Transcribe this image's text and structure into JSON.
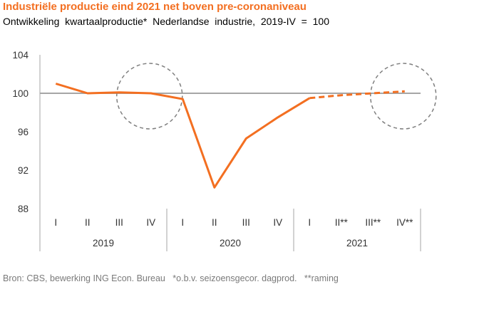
{
  "title": "Industriële productie eind 2021 net boven pre-coronaniveau",
  "subtitle": "Ontwikkeling  kwartaalproductie*  Nederlandse  industrie,  2019-IV  =  100",
  "source": "Bron: CBS, bewerking ING Econ. Bureau   *o.b.v. seizoensgecor. dagprod.   **raming",
  "colors": {
    "line": "#f36f21",
    "axis": "#a6a6a6",
    "circle": "#7f7f7f",
    "title": "#f36f21"
  },
  "chart_data": {
    "type": "line",
    "categories": [
      "I",
      "II",
      "III",
      "IV",
      "I",
      "II",
      "III",
      "IV",
      "I",
      "II**",
      "III**",
      "IV**"
    ],
    "groups": [
      {
        "label": "2019",
        "count": 4
      },
      {
        "label": "2020",
        "count": 4
      },
      {
        "label": "2021",
        "count": 4
      }
    ],
    "series": [
      {
        "style": "solid",
        "values": [
          101.0,
          100.0,
          100.1,
          100.0,
          99.4,
          90.2,
          95.3,
          97.5,
          99.5,
          null,
          null,
          null
        ]
      },
      {
        "style": "dashed",
        "values": [
          null,
          null,
          null,
          null,
          null,
          null,
          null,
          null,
          99.5,
          99.8,
          100.0,
          100.2
        ]
      }
    ],
    "yticks": [
      88,
      92,
      96,
      100,
      104
    ],
    "ylim": [
      88,
      104
    ],
    "reference_line": 100,
    "highlight_circles": [
      {
        "category_index": 3,
        "value": 100
      },
      {
        "category_index": 11,
        "value": 100
      }
    ],
    "legend": "none",
    "grid": false
  }
}
